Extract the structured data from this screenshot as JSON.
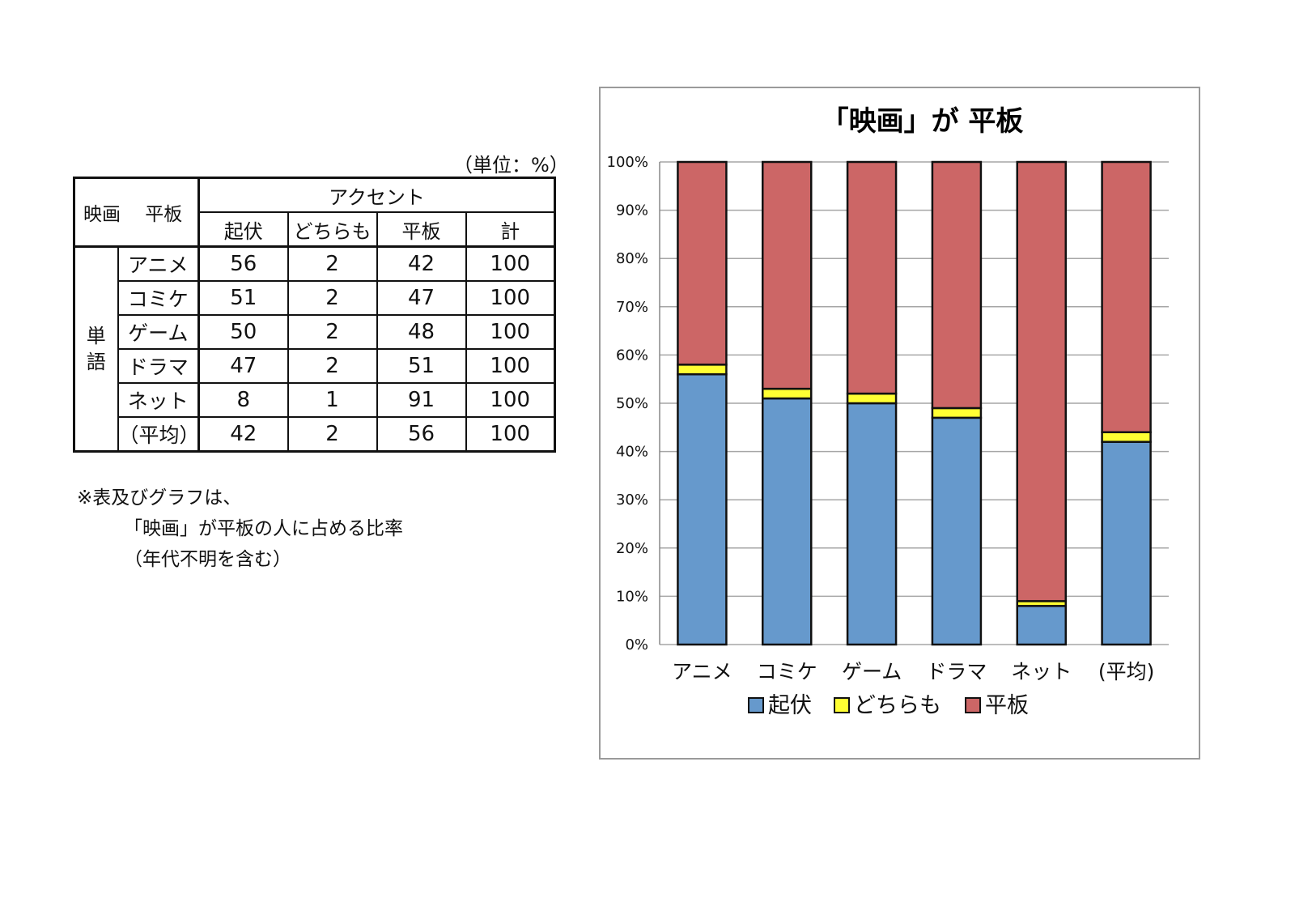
{
  "table": {
    "unit_note": "（単位：%）",
    "corner_label": "映画　 平板",
    "group_header": "アクセント",
    "columns": [
      "起伏",
      "どちらも",
      "平板",
      "計"
    ],
    "row_group_label": "単語",
    "rows": [
      {
        "label": "アニメ",
        "values": [
          "56",
          "2",
          "42",
          "100"
        ]
      },
      {
        "label": "コミケ",
        "values": [
          "51",
          "2",
          "47",
          "100"
        ]
      },
      {
        "label": "ゲーム",
        "values": [
          "50",
          "2",
          "48",
          "100"
        ]
      },
      {
        "label": "ドラマ",
        "values": [
          "47",
          "2",
          "51",
          "100"
        ]
      },
      {
        "label": "ネット",
        "values": [
          "8",
          "1",
          "91",
          "100"
        ]
      },
      {
        "label": "（平均）",
        "values": [
          "42",
          "2",
          "56",
          "100"
        ]
      }
    ]
  },
  "footnote": {
    "line1": "※表及びグラフは、",
    "line2": "「映画」が平板の人に占める比率",
    "line3": "（年代不明を含む）"
  },
  "chart_data": {
    "type": "bar",
    "stacked": true,
    "title": "「映画」が 平板",
    "categories": [
      "アニメ",
      "コミケ",
      "ゲーム",
      "ドラマ",
      "ネット",
      "(平均)"
    ],
    "series": [
      {
        "name": "起伏",
        "values": [
          56,
          51,
          50,
          47,
          8,
          42
        ],
        "color": "#6699cc"
      },
      {
        "name": "どちらも",
        "values": [
          2,
          2,
          2,
          2,
          1,
          2
        ],
        "color": "#ffff33"
      },
      {
        "name": "平板",
        "values": [
          42,
          47,
          48,
          51,
          91,
          56
        ],
        "color": "#cc6666"
      }
    ],
    "ylim": [
      0,
      100
    ],
    "ytick_labels": [
      "0%",
      "10%",
      "20%",
      "30%",
      "40%",
      "50%",
      "60%",
      "70%",
      "80%",
      "90%",
      "100%"
    ],
    "grid": true,
    "legend_position": "bottom"
  }
}
